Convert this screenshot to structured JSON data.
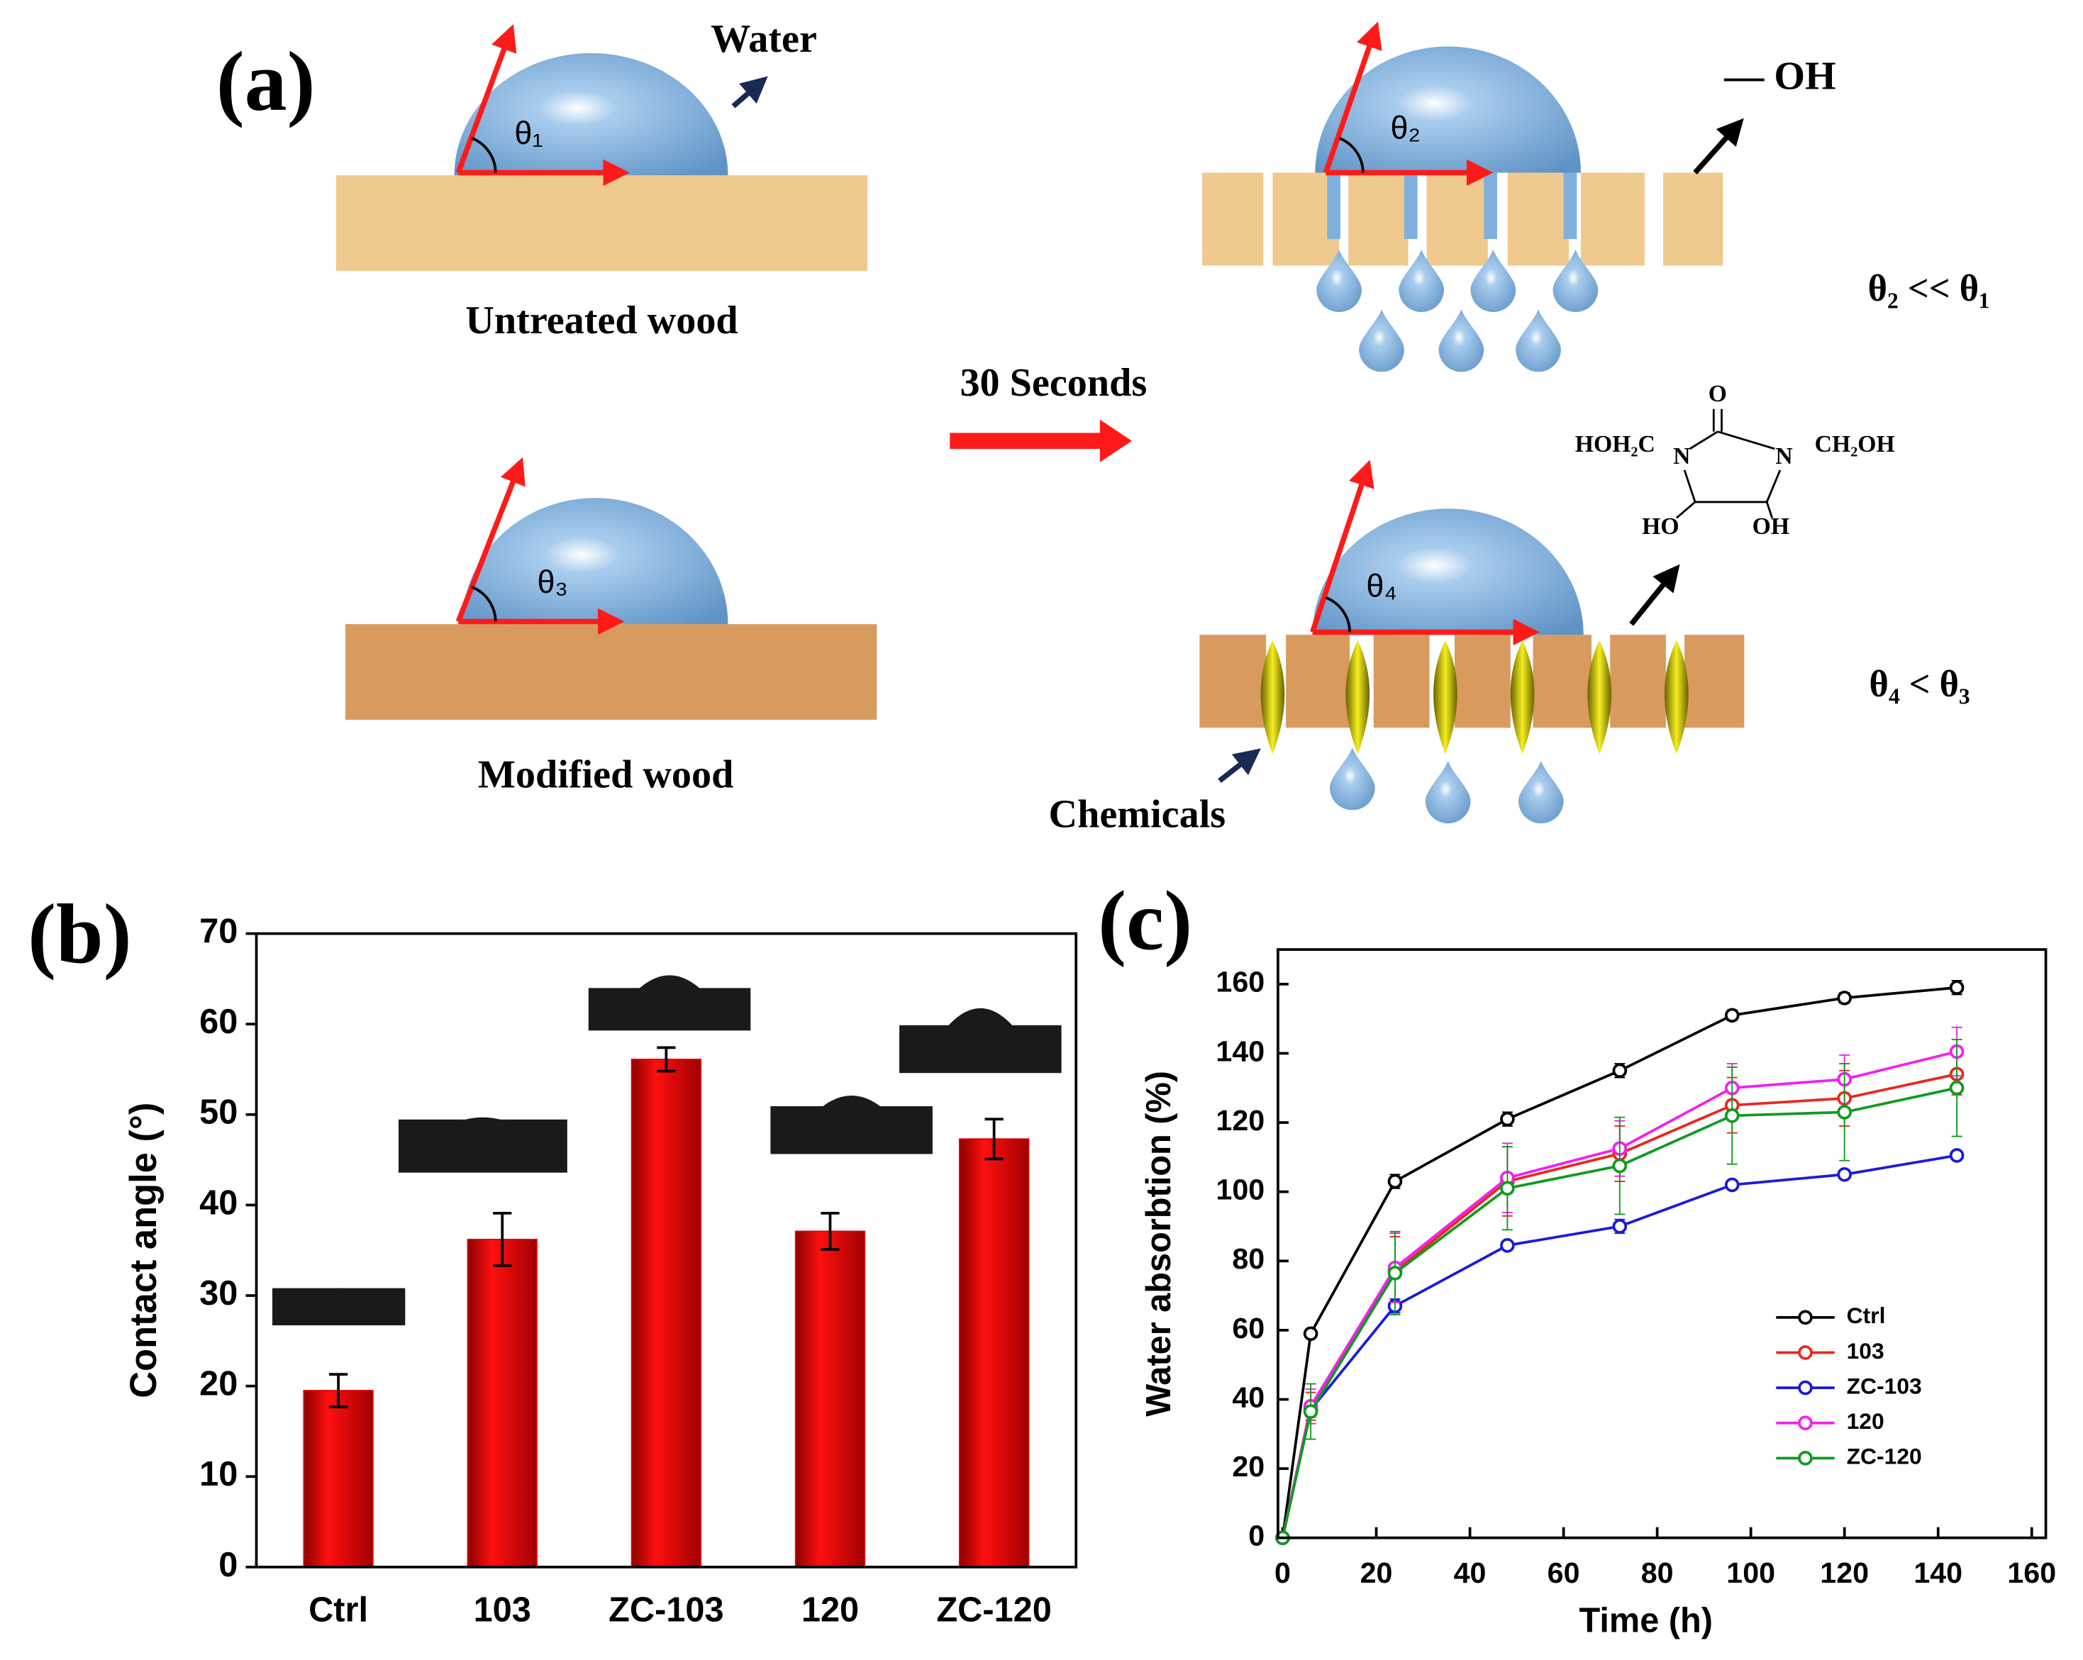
{
  "panel_a": {
    "label": "(a)",
    "water": "Water",
    "untreated": "Untreated wood",
    "modified": "Modified wood",
    "time": "30 Seconds",
    "oh": "— OH",
    "relation_top": "θ₂ << θ₁",
    "relation_bottom": "θ₄ < θ₃",
    "chemicals": "Chemicals",
    "theta1": "θ₁",
    "theta2": "θ₂",
    "theta3": "θ₃",
    "theta4": "θ₄",
    "molecule": {
      "o": "O",
      "left": "HOH₂C",
      "n1": "N",
      "n2": "N",
      "right": "CH₂OH",
      "ho": "HO",
      "oh": "OH"
    }
  },
  "chart_data": [
    {
      "type": "bar",
      "panel_label": "(b)",
      "y_label": "Contact angle (°)",
      "categories": [
        "Ctrl",
        "103",
        "ZC-103",
        "120",
        "ZC-120"
      ],
      "values": [
        19.5,
        36.2,
        56.1,
        37.1,
        47.3
      ],
      "errors": [
        1.8,
        2.9,
        1.3,
        2.0,
        2.2
      ],
      "color": "#e00000",
      "ylim": [
        0,
        70
      ],
      "yticks": [
        0,
        10,
        20,
        30,
        40,
        50,
        60,
        70
      ]
    },
    {
      "type": "line",
      "panel_label": "(c)",
      "x_label": "Time (h)",
      "y_label": "Water absorbtion (%)",
      "x": [
        0,
        6,
        24,
        48,
        72,
        96,
        120,
        144
      ],
      "series": [
        {
          "name": "Ctrl",
          "color": "#000000",
          "values": [
            0,
            59,
            103,
            121,
            135,
            151,
            156,
            159
          ],
          "errors": [
            0,
            1,
            2,
            2,
            2,
            1.5,
            1.5,
            2
          ]
        },
        {
          "name": "103",
          "color": "#e8281e",
          "values": [
            0,
            38,
            77,
            103,
            111,
            125,
            127,
            134
          ],
          "errors": [
            0,
            4,
            10,
            10,
            8,
            8,
            8,
            6
          ]
        },
        {
          "name": "ZC-103",
          "color": "#1a1adc",
          "values": [
            0,
            37,
            67,
            84.5,
            90,
            102,
            105,
            110.5
          ],
          "errors": [
            0,
            2,
            2,
            1,
            2,
            1,
            1,
            1
          ]
        },
        {
          "name": "120",
          "color": "#f020f0",
          "values": [
            0,
            38,
            78,
            104,
            112.5,
            130,
            132.5,
            140.5
          ],
          "errors": [
            0,
            5,
            10,
            10,
            8,
            7,
            7,
            7
          ]
        },
        {
          "name": "ZC-120",
          "color": "#109a20",
          "values": [
            0,
            36.5,
            76.5,
            101,
            107.5,
            122,
            123,
            130
          ],
          "errors": [
            0,
            8,
            12,
            12,
            14,
            14,
            14,
            14
          ]
        }
      ],
      "xlim": [
        -1,
        163
      ],
      "xticks": [
        0,
        20,
        40,
        60,
        80,
        100,
        120,
        140,
        160
      ],
      "ylim": [
        0,
        170
      ],
      "yticks": [
        0,
        20,
        40,
        60,
        80,
        100,
        120,
        140,
        160
      ]
    }
  ]
}
